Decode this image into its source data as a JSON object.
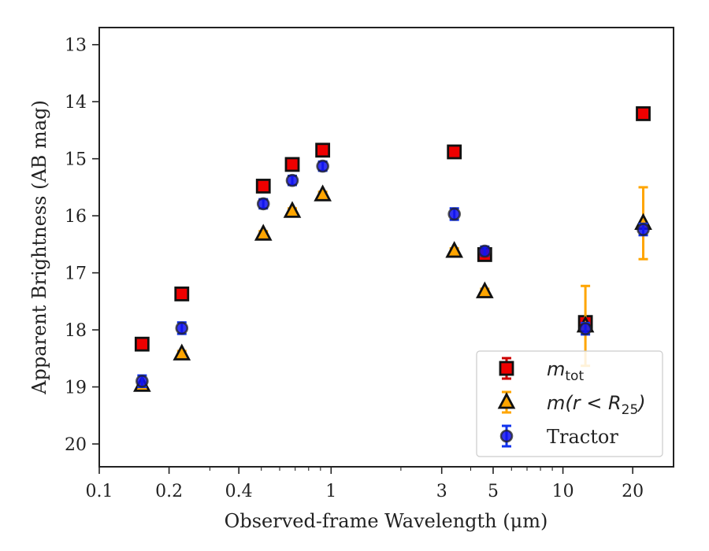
{
  "chart_data": {
    "type": "scatter",
    "xlabel": "Observed-frame Wavelength (μm)",
    "ylabel": "Apparent Brightness (AB mag)",
    "xscale": "log",
    "xlim": [
      0.1,
      30
    ],
    "ylim": [
      20.4,
      12.7
    ],
    "y_inverted": true,
    "xticks": [
      {
        "value": 0.1,
        "label": "0.1"
      },
      {
        "value": 0.2,
        "label": "0.2"
      },
      {
        "value": 0.4,
        "label": "0.4"
      },
      {
        "value": 1,
        "label": "1"
      },
      {
        "value": 3,
        "label": "3"
      },
      {
        "value": 5,
        "label": "5"
      },
      {
        "value": 10,
        "label": "10"
      },
      {
        "value": 20,
        "label": "20"
      }
    ],
    "yticks": [
      {
        "value": 13,
        "label": "13"
      },
      {
        "value": 14,
        "label": "14"
      },
      {
        "value": 15,
        "label": "15"
      },
      {
        "value": 16,
        "label": "16"
      },
      {
        "value": 17,
        "label": "17"
      },
      {
        "value": 18,
        "label": "18"
      },
      {
        "value": 19,
        "label": "19"
      },
      {
        "value": 20,
        "label": "20"
      }
    ],
    "grid": false,
    "legend_position": "lower-right",
    "series": [
      {
        "name": "m_tot",
        "legend_main": "m",
        "legend_sub": "tot",
        "marker": "square",
        "color": "#ee0000",
        "errcolor": "#cc0000",
        "points": [
          {
            "x": 0.153,
            "y": 18.25,
            "err": 0.05
          },
          {
            "x": 0.227,
            "y": 17.37,
            "err": 0.05
          },
          {
            "x": 0.51,
            "y": 15.48,
            "err": 0.05
          },
          {
            "x": 0.68,
            "y": 15.1,
            "err": 0.05
          },
          {
            "x": 0.92,
            "y": 14.85,
            "err": 0.05
          },
          {
            "x": 3.4,
            "y": 14.88,
            "err": 0.05
          },
          {
            "x": 4.6,
            "y": 16.68,
            "err": 0.05
          },
          {
            "x": 12.5,
            "y": 17.87,
            "err": 0.05
          },
          {
            "x": 22.2,
            "y": 14.21,
            "err": 0.05
          }
        ]
      },
      {
        "name": "m(r < R_25)",
        "legend_main": "m(r < R",
        "legend_sub": "25",
        "legend_close": ")",
        "marker": "triangle",
        "color": "#ffa500",
        "errcolor": "#ffa500",
        "points": [
          {
            "x": 0.153,
            "y": 18.97,
            "err": 0.05
          },
          {
            "x": 0.227,
            "y": 18.42,
            "err": 0.05
          },
          {
            "x": 0.51,
            "y": 16.32,
            "err": 0.05
          },
          {
            "x": 0.68,
            "y": 15.92,
            "err": 0.05
          },
          {
            "x": 0.92,
            "y": 15.63,
            "err": 0.05
          },
          {
            "x": 3.4,
            "y": 16.62,
            "err": 0.05
          },
          {
            "x": 4.6,
            "y": 17.33,
            "err": 0.05
          },
          {
            "x": 12.5,
            "y": 17.93,
            "err": 0.7
          },
          {
            "x": 22.2,
            "y": 16.13,
            "err": 0.63
          }
        ]
      },
      {
        "name": "Tractor",
        "legend_main": "Tractor",
        "marker": "circle",
        "color": "#1111ee",
        "errcolor": "#1133ee",
        "points": [
          {
            "x": 0.153,
            "y": 18.9,
            "err": 0.1
          },
          {
            "x": 0.227,
            "y": 17.97,
            "err": 0.1
          },
          {
            "x": 0.51,
            "y": 15.79,
            "err": 0.08
          },
          {
            "x": 0.68,
            "y": 15.38,
            "err": 0.08
          },
          {
            "x": 0.92,
            "y": 15.13,
            "err": 0.08
          },
          {
            "x": 3.4,
            "y": 15.97,
            "err": 0.1
          },
          {
            "x": 4.6,
            "y": 16.62,
            "err": 0.08
          },
          {
            "x": 12.5,
            "y": 17.98,
            "err": 0.1
          },
          {
            "x": 22.2,
            "y": 16.24,
            "err": 0.1
          }
        ]
      }
    ]
  }
}
